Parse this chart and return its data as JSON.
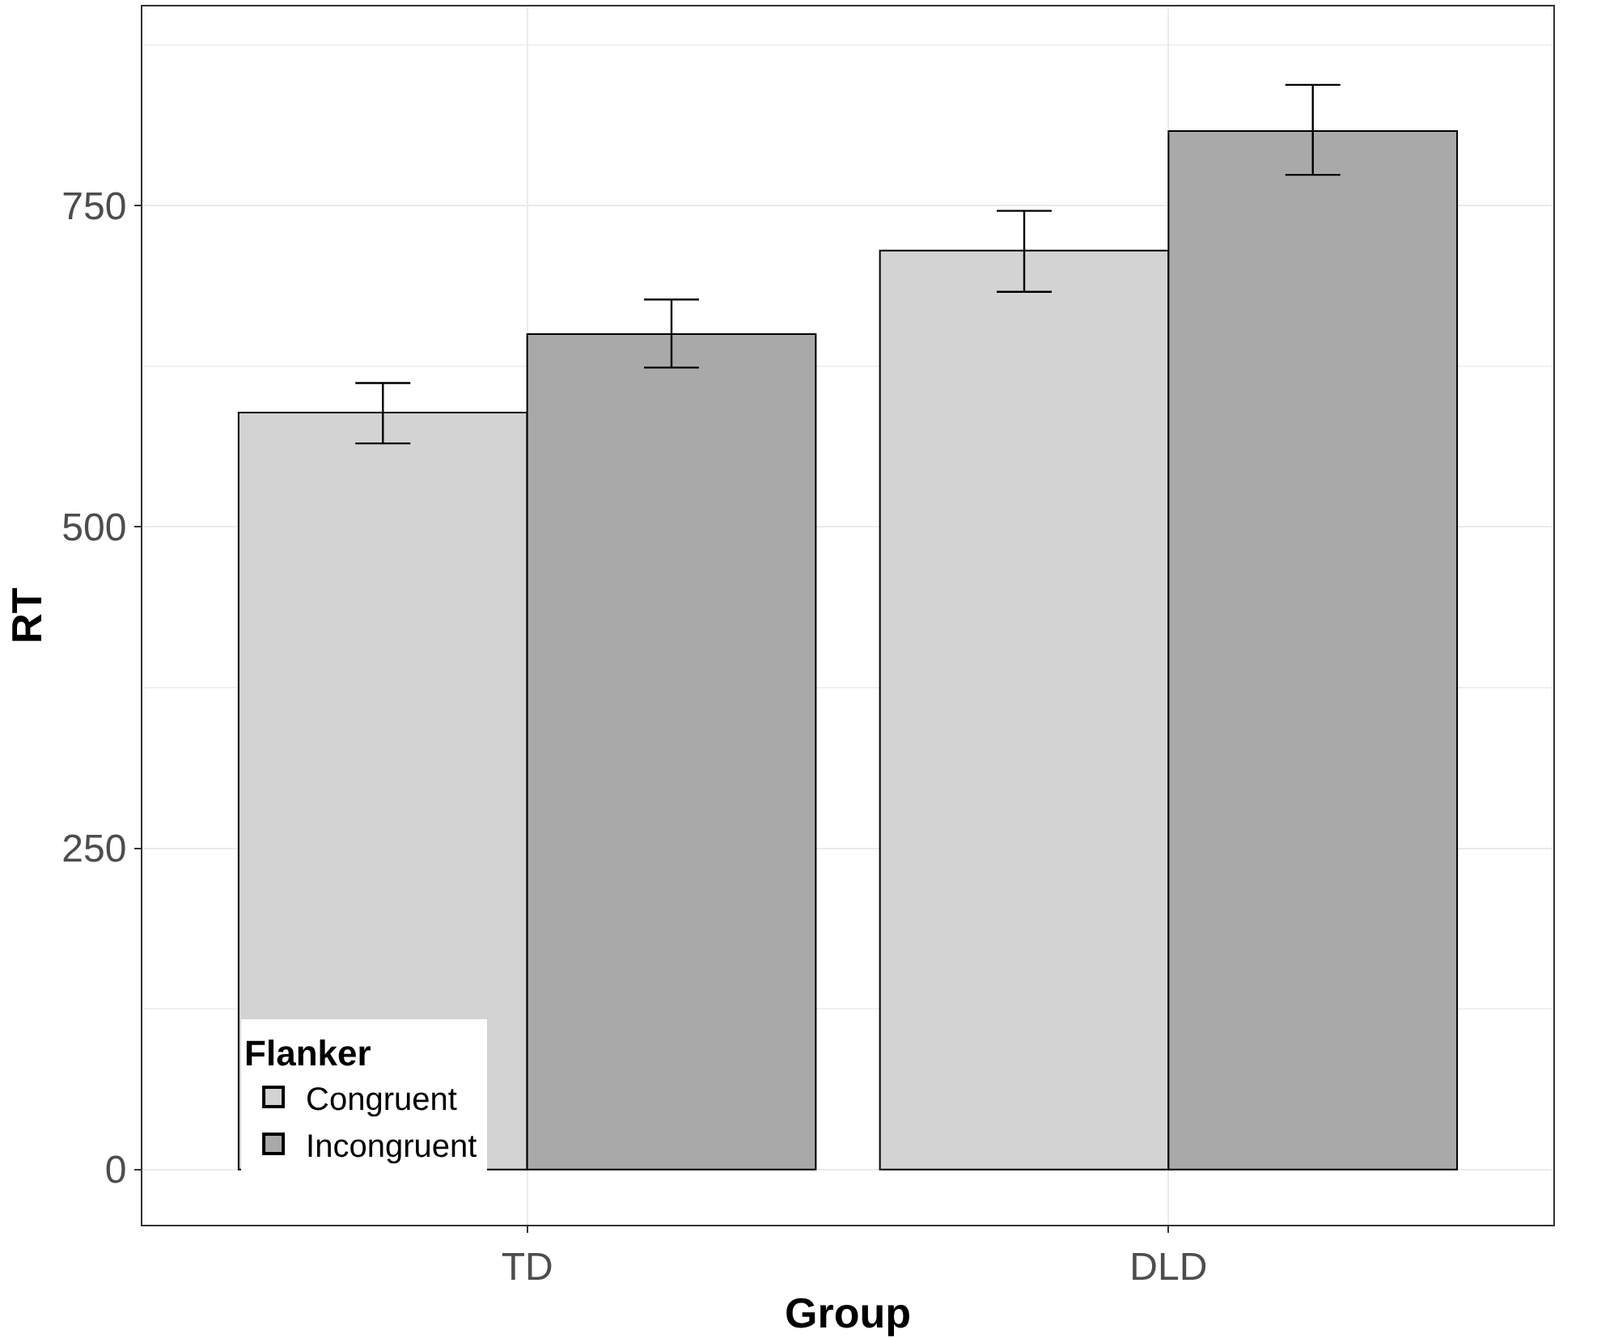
{
  "chart_data": {
    "type": "bar",
    "xlabel": "Group",
    "ylabel": "RT",
    "legend_title": "Flanker",
    "categories": [
      "TD",
      "DLD"
    ],
    "series": [
      {
        "name": "Congruent",
        "color": "#d3d3d3",
        "values": [
          589,
          715
        ],
        "errors": [
          [
            565,
            612
          ],
          [
            683,
            746
          ]
        ]
      },
      {
        "name": "Incongruent",
        "color": "#a9a9a9",
        "values": [
          650,
          808
        ],
        "errors": [
          [
            624,
            677
          ],
          [
            774,
            844
          ]
        ]
      }
    ],
    "ylim": [
      -43,
      905
    ],
    "yticks": [
      0,
      {
        "value": 125,
        "label": null
      },
      250,
      {
        "value": 375,
        "label": null
      },
      500,
      {
        "value": 625,
        "label": null
      },
      750,
      {
        "value": 875,
        "label": null
      }
    ],
    "grid": true,
    "legend": "bottom left"
  }
}
